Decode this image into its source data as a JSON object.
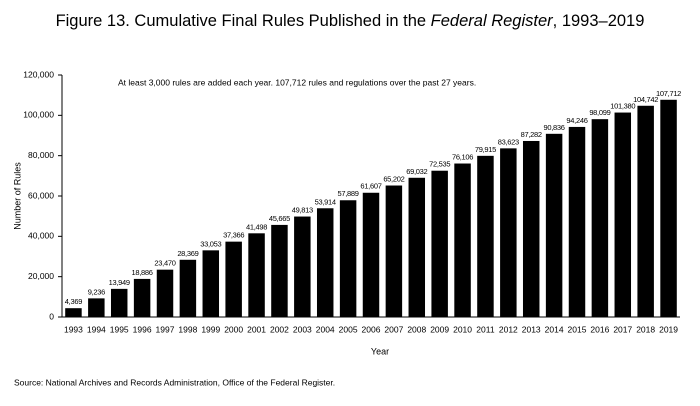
{
  "chart_data": {
    "type": "bar",
    "title": [
      "Figure 13. Cumulative Final Rules Published in the ",
      "Federal Register",
      ", 1993–2019"
    ],
    "annotation": "At least 3,000 rules are added each year. 107,712 rules and regulations over the past 27 years.",
    "x_label": "Year",
    "y_label": "Number of Rules",
    "source": "Source: National Archives and Records Administration, Office of the Federal Register.",
    "categories": [
      "1993",
      "1994",
      "1995",
      "1996",
      "1997",
      "1998",
      "1999",
      "2000",
      "2001",
      "2002",
      "2003",
      "2004",
      "2005",
      "2006",
      "2007",
      "2008",
      "2009",
      "2010",
      "2011",
      "2012",
      "2013",
      "2014",
      "2015",
      "2016",
      "2017",
      "2018",
      "2019"
    ],
    "values": [
      4369,
      9236,
      13949,
      18886,
      23470,
      28369,
      33053,
      37366,
      41498,
      45665,
      49813,
      53914,
      57889,
      61607,
      65202,
      69032,
      72535,
      76106,
      79915,
      83623,
      87282,
      90836,
      94246,
      98099,
      101380,
      104742,
      107712
    ],
    "value_labels": [
      "4,369",
      "9,236",
      "13,949",
      "18,886",
      "23,470",
      "28,369",
      "33,053",
      "37,366",
      "41,498",
      "45,665",
      "49,813",
      "53,914",
      "57,889",
      "61,607",
      "65,202",
      "69,032",
      "72,535",
      "76,106",
      "79,915",
      "83,623",
      "87,282",
      "90,836",
      "94,246",
      "98,099",
      "101,380",
      "104,742",
      "107,712"
    ],
    "color": "#000000",
    "ylim": [
      0,
      120000
    ],
    "yticks": [
      0,
      {
        "value": 20000,
        "label": "20,000"
      },
      {
        "value": 40000,
        "label": "40,000"
      },
      {
        "value": 60000,
        "label": "60,000"
      },
      {
        "value": 80000,
        "label": "80,000"
      },
      {
        "value": 100000,
        "label": "100,000"
      },
      {
        "value": 120000,
        "label": "120,000"
      }
    ],
    "grid": false
  }
}
